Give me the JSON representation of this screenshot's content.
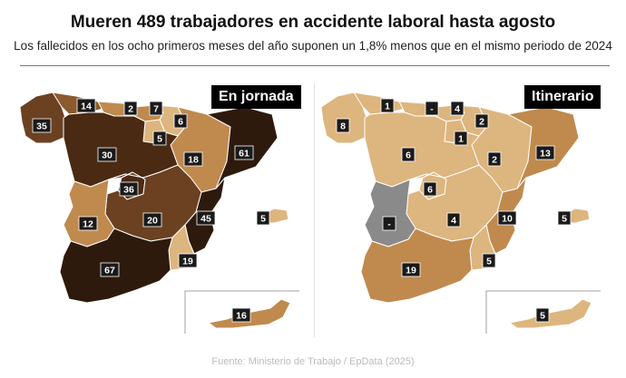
{
  "title": "Mueren 489 trabajadores en accidente laboral hasta agosto",
  "subtitle": "Los fallecidos en los ocho primeros meses del año suponen un 1,8% menos que en el mismo periodo de 2024",
  "source": "Fuente: Ministerio de Trabajo / EpData (2025)",
  "colors": {
    "dark": "#2e1a0d",
    "darkbrown": "#4a2a12",
    "brown": "#6b4122",
    "midbrown": "#8b5a2e",
    "tan": "#c08a4e",
    "light": "#ddb57e",
    "gray": "#8a8a8a"
  },
  "maps": [
    {
      "label": "En jornada",
      "values": {
        "galicia": "35",
        "asturias": "14",
        "cantabria": "2",
        "pais_vasco": "7",
        "navarra": "6",
        "la_rioja": "5",
        "aragon": "18",
        "cataluna": "61",
        "castilla_leon": "30",
        "madrid": "36",
        "castilla_la_mancha": "20",
        "valencia": "45",
        "extremadura": "12",
        "andalucia": "67",
        "murcia": "19",
        "baleares": "5",
        "canarias": "16"
      }
    },
    {
      "label": "Itinerario",
      "values": {
        "galicia": "8",
        "asturias": "1",
        "cantabria": "-",
        "pais_vasco": "4",
        "navarra": "2",
        "la_rioja": "1",
        "aragon": "2",
        "cataluna": "13",
        "castilla_leon": "6",
        "madrid": "6",
        "castilla_la_mancha": "4",
        "valencia": "10",
        "extremadura": "-",
        "andalucia": "19",
        "murcia": "5",
        "baleares": "5",
        "canarias": "5"
      }
    }
  ]
}
